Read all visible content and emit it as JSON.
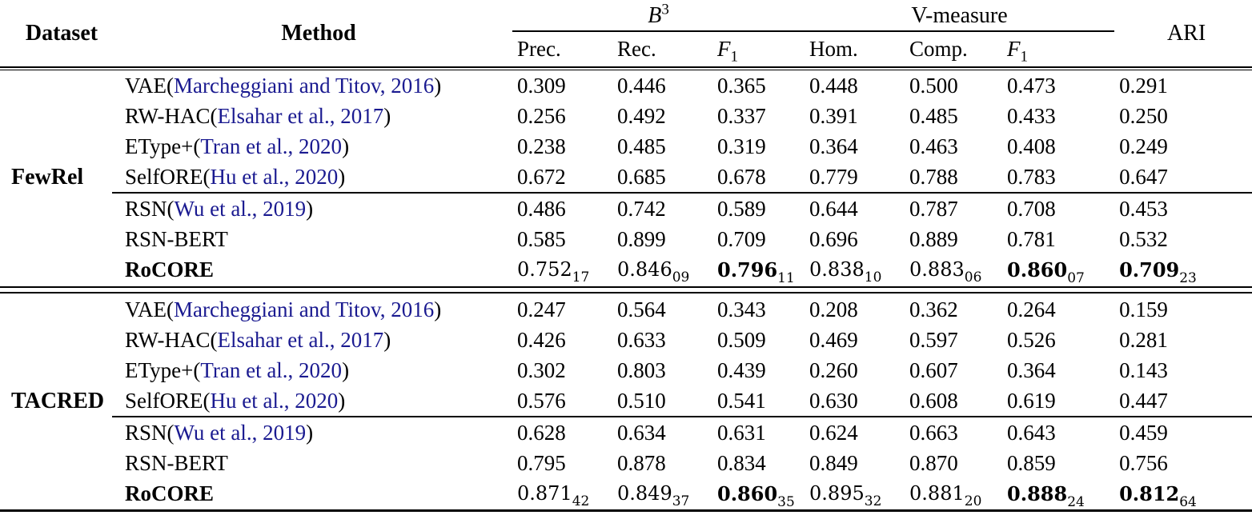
{
  "header": {
    "dataset": "Dataset",
    "method": "Method",
    "b3": {
      "label": "B",
      "sup": "3"
    },
    "vmeasure": "V-measure",
    "ari": "ARI",
    "subcols": [
      {
        "label": "Prec."
      },
      {
        "label": "Rec."
      },
      {
        "label": "F",
        "sub": "1"
      },
      {
        "label": "Hom."
      },
      {
        "label": "Comp."
      },
      {
        "label": "F",
        "sub": "1"
      }
    ]
  },
  "sections": [
    {
      "dataset": "FewRel",
      "rows": [
        {
          "method": "VAE",
          "cite": "Marcheggiani and Titov, 2016",
          "values": [
            {
              "v": "0.309"
            },
            {
              "v": "0.446"
            },
            {
              "v": "0.365"
            },
            {
              "v": "0.448"
            },
            {
              "v": "0.500"
            },
            {
              "v": "0.473"
            },
            {
              "v": "0.291"
            }
          ]
        },
        {
          "method": "RW-HAC",
          "cite": "Elsahar et al., 2017",
          "values": [
            {
              "v": "0.256"
            },
            {
              "v": "0.492"
            },
            {
              "v": "0.337"
            },
            {
              "v": "0.391"
            },
            {
              "v": "0.485"
            },
            {
              "v": "0.433"
            },
            {
              "v": "0.250"
            }
          ]
        },
        {
          "method": "EType+",
          "cite": "Tran et al., 2020",
          "values": [
            {
              "v": "0.238"
            },
            {
              "v": "0.485"
            },
            {
              "v": "0.319"
            },
            {
              "v": "0.364"
            },
            {
              "v": "0.463"
            },
            {
              "v": "0.408"
            },
            {
              "v": "0.249"
            }
          ]
        },
        {
          "method": "SelfORE",
          "cite": "Hu et al., 2020",
          "values": [
            {
              "v": "0.672"
            },
            {
              "v": "0.685"
            },
            {
              "v": "0.678"
            },
            {
              "v": "0.779"
            },
            {
              "v": "0.788"
            },
            {
              "v": "0.783"
            },
            {
              "v": "0.647"
            }
          ]
        },
        {
          "method": "RSN",
          "cite": "Wu et al., 2019",
          "rule_above": true,
          "values": [
            {
              "v": "0.486"
            },
            {
              "v": "0.742"
            },
            {
              "v": "0.589"
            },
            {
              "v": "0.644"
            },
            {
              "v": "0.787"
            },
            {
              "v": "0.708"
            },
            {
              "v": "0.453"
            }
          ]
        },
        {
          "method": "RSN-BERT",
          "values": [
            {
              "v": "0.585"
            },
            {
              "v": "0.899"
            },
            {
              "v": "0.709"
            },
            {
              "v": "0.696"
            },
            {
              "v": "0.889"
            },
            {
              "v": "0.781"
            },
            {
              "v": "0.532"
            }
          ]
        },
        {
          "method": "RoCORE",
          "bold": true,
          "cm": true,
          "values": [
            {
              "v": "0.752",
              "sub": "17"
            },
            {
              "v": "0.846",
              "sub": "09"
            },
            {
              "v": "0.796",
              "sub": "11",
              "bold": true
            },
            {
              "v": "0.838",
              "sub": "10"
            },
            {
              "v": "0.883",
              "sub": "06"
            },
            {
              "v": "0.860",
              "sub": "07",
              "bold": true
            },
            {
              "v": "0.709",
              "sub": "23",
              "bold": true
            }
          ]
        }
      ]
    },
    {
      "dataset": "TACRED",
      "rows": [
        {
          "method": "VAE",
          "cite": "Marcheggiani and Titov, 2016",
          "values": [
            {
              "v": "0.247"
            },
            {
              "v": "0.564"
            },
            {
              "v": "0.343"
            },
            {
              "v": "0.208"
            },
            {
              "v": "0.362"
            },
            {
              "v": "0.264"
            },
            {
              "v": "0.159"
            }
          ]
        },
        {
          "method": "RW-HAC",
          "cite": "Elsahar et al., 2017",
          "values": [
            {
              "v": "0.426"
            },
            {
              "v": "0.633"
            },
            {
              "v": "0.509"
            },
            {
              "v": "0.469"
            },
            {
              "v": "0.597"
            },
            {
              "v": "0.526"
            },
            {
              "v": "0.281"
            }
          ]
        },
        {
          "method": "EType+",
          "cite": "Tran et al., 2020",
          "values": [
            {
              "v": "0.302"
            },
            {
              "v": "0.803"
            },
            {
              "v": "0.439"
            },
            {
              "v": "0.260"
            },
            {
              "v": "0.607"
            },
            {
              "v": "0.364"
            },
            {
              "v": "0.143"
            }
          ]
        },
        {
          "method": "SelfORE",
          "cite": "Hu et al., 2020",
          "values": [
            {
              "v": "0.576"
            },
            {
              "v": "0.510"
            },
            {
              "v": "0.541"
            },
            {
              "v": "0.630"
            },
            {
              "v": "0.608"
            },
            {
              "v": "0.619"
            },
            {
              "v": "0.447"
            }
          ]
        },
        {
          "method": "RSN",
          "cite": "Wu et al., 2019",
          "rule_above": true,
          "values": [
            {
              "v": "0.628"
            },
            {
              "v": "0.634"
            },
            {
              "v": "0.631"
            },
            {
              "v": "0.624"
            },
            {
              "v": "0.663"
            },
            {
              "v": "0.643"
            },
            {
              "v": "0.459"
            }
          ]
        },
        {
          "method": "RSN-BERT",
          "values": [
            {
              "v": "0.795"
            },
            {
              "v": "0.878"
            },
            {
              "v": "0.834"
            },
            {
              "v": "0.849"
            },
            {
              "v": "0.870"
            },
            {
              "v": "0.859"
            },
            {
              "v": "0.756"
            }
          ]
        },
        {
          "method": "RoCORE",
          "bold": true,
          "cm": true,
          "values": [
            {
              "v": "0.871",
              "sub": "42"
            },
            {
              "v": "0.849",
              "sub": "37"
            },
            {
              "v": "0.860",
              "sub": "35",
              "bold": true
            },
            {
              "v": "0.895",
              "sub": "32"
            },
            {
              "v": "0.881",
              "sub": "20"
            },
            {
              "v": "0.888",
              "sub": "24",
              "bold": true
            },
            {
              "v": "0.812",
              "sub": "64",
              "bold": true
            }
          ]
        }
      ]
    }
  ]
}
